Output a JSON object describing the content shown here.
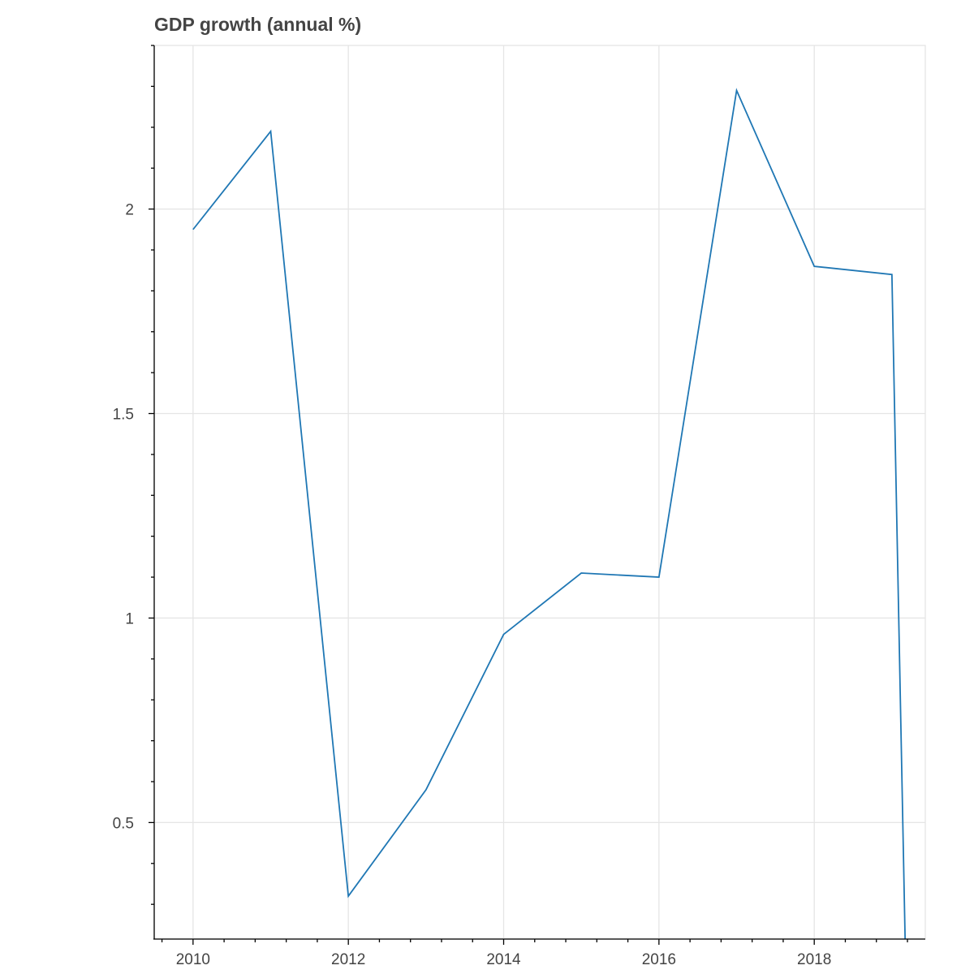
{
  "chart_data": {
    "type": "line",
    "title": "GDP growth (annual %)",
    "xlabel": "",
    "ylabel": "",
    "xlim": [
      2009.5,
      2019.43
    ],
    "ylim": [
      0.215,
      2.4
    ],
    "grid": true,
    "x_ticks": [
      2010,
      2012,
      2014,
      2016,
      2018
    ],
    "x_tick_labels": [
      "2010",
      "2012",
      "2014",
      "2016",
      "2018"
    ],
    "y_ticks": [
      0.5,
      1,
      1.5,
      2
    ],
    "y_tick_labels": [
      "0.5",
      "1",
      "1.5",
      "2"
    ],
    "series": [
      {
        "color": "#1f77b4",
        "x": [
          2010,
          2011,
          2012,
          2013,
          2014,
          2015,
          2016,
          2017,
          2018,
          2019,
          2019.17
        ],
        "y": [
          1.95,
          2.19,
          0.32,
          0.58,
          0.96,
          1.11,
          1.1,
          2.29,
          1.86,
          1.84,
          0.215
        ]
      }
    ]
  }
}
